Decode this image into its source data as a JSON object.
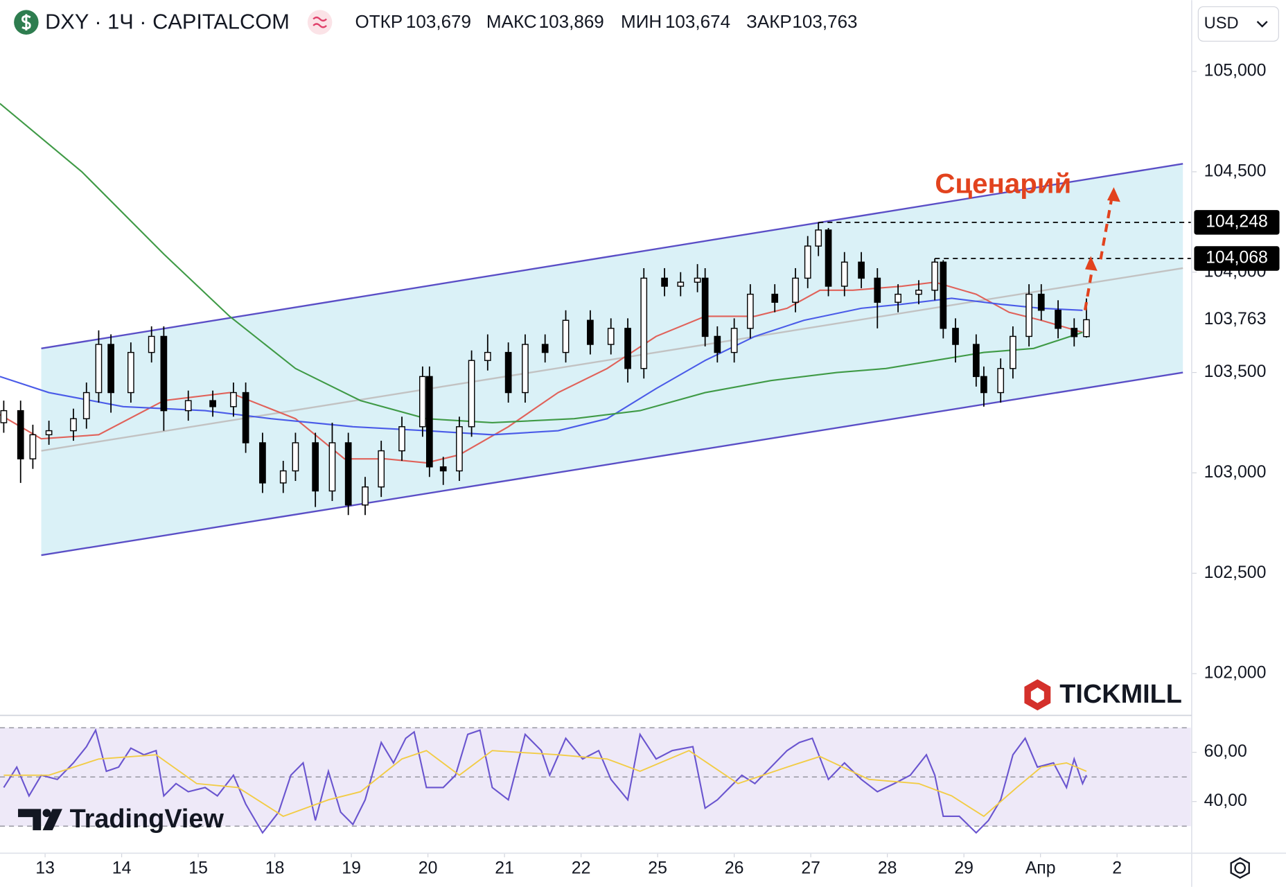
{
  "header": {
    "symbol": "DXY · 1Ч · CAPITALCOM",
    "fields": [
      {
        "label": "ОТКР",
        "value": "103,679"
      },
      {
        "label": "МАКС",
        "value": "103,869"
      },
      {
        "label": "МИН",
        "value": "103,674"
      },
      {
        "label": "ЗАКР",
        "value": "103,763"
      }
    ],
    "currency": "USD"
  },
  "brand": "TICKMILL",
  "watermark": "TradingView",
  "annotation": "Сценарий",
  "chart_data": [
    {
      "type": "candlestick",
      "xlim": [
        -0.589,
        14.964
      ],
      "ylim": [
        101.8,
        105.355
      ],
      "yticks": [
        {
          "value": 102,
          "label": "102,000"
        },
        {
          "value": 102.5,
          "label": "102,500"
        },
        {
          "value": 103,
          "label": "103,000"
        },
        {
          "value": 103.5,
          "label": "103,500"
        },
        {
          "value": 104,
          "label": "104,000"
        },
        {
          "value": 104.5,
          "label": "104,500"
        },
        {
          "value": 105,
          "label": "105,000"
        }
      ],
      "up_color": "#ffffff",
      "down_color": "#000000",
      "x": [
        -0.54,
        -0.32,
        -0.16,
        0.05,
        0.37,
        0.54,
        0.7,
        0.86,
        1.12,
        1.39,
        1.55,
        1.87,
        2.19,
        2.46,
        2.62,
        2.84,
        3.11,
        3.27,
        3.53,
        3.75,
        3.96,
        4.18,
        4.39,
        4.66,
        4.93,
        5.02,
        5.2,
        5.41,
        5.57,
        5.78,
        6.05,
        6.27,
        6.53,
        6.8,
        7.12,
        7.39,
        7.61,
        7.82,
        8.09,
        8.3,
        8.52,
        8.62,
        8.78,
        9.0,
        9.21,
        9.53,
        9.8,
        9.96,
        10.1,
        10.23,
        10.44,
        10.66,
        10.87,
        11.14,
        11.41,
        11.62,
        11.73,
        11.89,
        12.16,
        12.26,
        12.48,
        12.64,
        12.85,
        13.01,
        13.23,
        13.44,
        13.6
      ],
      "open": [
        103.25,
        103.31,
        103.07,
        103.19,
        103.21,
        103.27,
        103.4,
        103.64,
        103.4,
        103.6,
        103.68,
        103.31,
        103.36,
        103.33,
        103.4,
        103.15,
        102.95,
        103.01,
        103.15,
        102.91,
        103.15,
        102.84,
        102.93,
        103.11,
        103.23,
        103.48,
        103.03,
        103.01,
        103.23,
        103.56,
        103.6,
        103.4,
        103.64,
        103.6,
        103.76,
        103.64,
        103.72,
        103.52,
        103.97,
        103.93,
        103.95,
        103.97,
        103.68,
        103.6,
        103.72,
        103.89,
        103.85,
        103.97,
        104.13,
        104.21,
        103.93,
        104.05,
        103.97,
        103.85,
        103.89,
        103.91,
        104.05,
        103.72,
        103.64,
        103.48,
        103.4,
        103.52,
        103.68,
        103.89,
        103.81,
        103.72,
        103.679
      ],
      "high": [
        103.36,
        103.36,
        103.24,
        103.26,
        103.32,
        103.45,
        103.71,
        103.69,
        103.65,
        103.73,
        103.73,
        103.41,
        103.41,
        103.45,
        103.45,
        103.2,
        103.06,
        103.2,
        103.2,
        103.25,
        103.2,
        102.98,
        103.16,
        103.28,
        103.53,
        103.53,
        103.08,
        103.28,
        103.61,
        103.69,
        103.65,
        103.69,
        103.69,
        103.81,
        103.81,
        103.77,
        103.77,
        104.02,
        104.02,
        104.0,
        104.04,
        104.02,
        103.73,
        103.77,
        103.94,
        103.94,
        104.02,
        104.18,
        104.248,
        104.22,
        104.1,
        104.1,
        104.02,
        103.94,
        103.96,
        104.068,
        104.06,
        103.77,
        103.69,
        103.53,
        103.57,
        103.73,
        103.94,
        103.94,
        103.86,
        103.77,
        103.869
      ],
      "low": [
        103.2,
        102.95,
        103.02,
        103.14,
        103.16,
        103.22,
        103.35,
        103.3,
        103.35,
        103.55,
        103.21,
        103.26,
        103.28,
        103.28,
        103.1,
        102.9,
        102.9,
        102.96,
        102.83,
        102.86,
        102.79,
        102.79,
        102.88,
        103.06,
        103.18,
        102.98,
        102.94,
        102.96,
        103.18,
        103.51,
        103.35,
        103.35,
        103.55,
        103.55,
        103.59,
        103.59,
        103.45,
        103.47,
        103.88,
        103.88,
        103.9,
        103.63,
        103.55,
        103.55,
        103.67,
        103.8,
        103.8,
        103.92,
        104.08,
        103.88,
        103.88,
        103.92,
        103.72,
        103.8,
        103.84,
        103.86,
        103.67,
        103.55,
        103.43,
        103.33,
        103.35,
        103.47,
        103.63,
        103.76,
        103.67,
        103.63,
        103.674
      ],
      "close": [
        103.31,
        103.07,
        103.19,
        103.21,
        103.27,
        103.4,
        103.64,
        103.4,
        103.6,
        103.68,
        103.31,
        103.36,
        103.33,
        103.4,
        103.15,
        102.95,
        103.01,
        103.15,
        102.91,
        103.15,
        102.84,
        102.93,
        103.11,
        103.23,
        103.48,
        103.03,
        103.01,
        103.23,
        103.56,
        103.6,
        103.4,
        103.64,
        103.6,
        103.76,
        103.64,
        103.72,
        103.52,
        103.97,
        103.93,
        103.95,
        103.97,
        103.68,
        103.6,
        103.72,
        103.89,
        103.85,
        103.97,
        104.13,
        104.21,
        103.93,
        104.05,
        103.97,
        103.85,
        103.89,
        103.91,
        104.05,
        103.72,
        103.64,
        103.48,
        103.4,
        103.52,
        103.68,
        103.89,
        103.81,
        103.72,
        103.679,
        103.763
      ],
      "lines": [
        {
          "color": "#e0625a",
          "x": [
            -0.59,
            -0.05,
            0.7,
            1.55,
            2.41,
            3.27,
            3.91,
            4.45,
            4.98,
            5.41,
            6.05,
            6.7,
            7.34,
            7.98,
            8.62,
            9.27,
            9.69,
            10.12,
            10.55,
            11.19,
            11.62,
            12.16,
            12.59,
            13.01,
            13.55
          ],
          "values": [
            103.29,
            103.17,
            103.19,
            103.36,
            103.4,
            103.27,
            103.07,
            103.07,
            103.05,
            103.09,
            103.23,
            103.4,
            103.52,
            103.68,
            103.78,
            103.78,
            103.82,
            103.91,
            103.91,
            103.93,
            103.95,
            103.89,
            103.8,
            103.76,
            103.7
          ]
        },
        {
          "color": "#4a5be8",
          "x": [
            -0.59,
            0.05,
            1.02,
            2.09,
            2.95,
            4.02,
            4.98,
            5.84,
            6.7,
            7.34,
            7.98,
            8.62,
            9.27,
            9.91,
            10.66,
            11.19,
            11.84,
            12.48,
            13.01,
            13.55
          ],
          "values": [
            103.48,
            103.4,
            103.33,
            103.31,
            103.27,
            103.23,
            103.21,
            103.19,
            103.21,
            103.27,
            103.42,
            103.56,
            103.68,
            103.76,
            103.82,
            103.84,
            103.87,
            103.84,
            103.82,
            103.81
          ]
        },
        {
          "color": "#3f9a46",
          "x": [
            -0.59,
            0.48,
            1.55,
            2.41,
            3.27,
            4.12,
            4.98,
            5.84,
            6.91,
            7.77,
            8.62,
            9.48,
            10.34,
            10.98,
            11.62,
            12.26,
            12.91,
            13.55
          ],
          "values": [
            104.84,
            104.5,
            104.09,
            103.78,
            103.52,
            103.36,
            103.27,
            103.25,
            103.27,
            103.31,
            103.4,
            103.46,
            103.5,
            103.52,
            103.56,
            103.6,
            103.62,
            103.7
          ]
        }
      ],
      "channel": {
        "x": [
          -0.05,
          14.86
        ],
        "upper": [
          103.62,
          104.54
        ],
        "lower": [
          102.59,
          103.5
        ],
        "middle": [
          103.11,
          104.02
        ],
        "color": "#5a4ec6",
        "fill": "#daf1f7"
      },
      "levels": [
        {
          "value": 104.248,
          "label": "104,248",
          "x_start": 10.1
        },
        {
          "value": 104.068,
          "label": "104,068",
          "x_start": 11.62
        }
      ],
      "price_label": {
        "value": 103.763,
        "label": "103,763"
      }
    },
    {
      "type": "line",
      "xlim": [
        -0.589,
        14.964
      ],
      "ylim": [
        19,
        74.67
      ],
      "yticks": [
        {
          "value": 40,
          "label": "40,00"
        },
        {
          "value": 60,
          "label": "60,00"
        }
      ],
      "bands": [
        30,
        50,
        70
      ],
      "xticks": [
        {
          "value": 0,
          "label": "13"
        },
        {
          "value": 1,
          "label": "14"
        },
        {
          "value": 2,
          "label": "15"
        },
        {
          "value": 3,
          "label": "18"
        },
        {
          "value": 4,
          "label": "19"
        },
        {
          "value": 5,
          "label": "20"
        },
        {
          "value": 6,
          "label": "21"
        },
        {
          "value": 7,
          "label": "22"
        },
        {
          "value": 8,
          "label": "25"
        },
        {
          "value": 9,
          "label": "26"
        },
        {
          "value": 10,
          "label": "27"
        },
        {
          "value": 11,
          "label": "28"
        },
        {
          "value": 12,
          "label": "29"
        },
        {
          "value": 13,
          "label": "Апр"
        },
        {
          "value": 14,
          "label": "2"
        }
      ],
      "series": [
        {
          "color": "#6a55cf",
          "x": [
            -0.54,
            -0.37,
            -0.21,
            -0.05,
            0.16,
            0.37,
            0.54,
            0.66,
            0.8,
            0.96,
            1.12,
            1.29,
            1.45,
            1.55,
            1.71,
            1.87,
            2.09,
            2.25,
            2.46,
            2.62,
            2.84,
            3.05,
            3.21,
            3.37,
            3.53,
            3.7,
            3.86,
            4.02,
            4.18,
            4.39,
            4.55,
            4.71,
            4.82,
            4.98,
            5.2,
            5.36,
            5.52,
            5.68,
            5.84,
            6.05,
            6.27,
            6.48,
            6.59,
            6.8,
            7.02,
            7.23,
            7.39,
            7.61,
            7.77,
            7.98,
            8.19,
            8.46,
            8.62,
            8.78,
            8.94,
            9.1,
            9.27,
            9.48,
            9.69,
            9.85,
            10.02,
            10.23,
            10.44,
            10.66,
            10.87,
            11.09,
            11.3,
            11.51,
            11.62,
            11.73,
            11.94,
            12.16,
            12.32,
            12.48,
            12.64,
            12.8,
            12.96,
            13.17,
            13.34,
            13.44,
            13.55,
            13.6
          ],
          "values": [
            45.7,
            54,
            42.3,
            50.7,
            49,
            55.7,
            62.3,
            69,
            52.3,
            54,
            61.7,
            59,
            60.7,
            42.3,
            47.3,
            44,
            45.7,
            42.3,
            50.7,
            39,
            27.3,
            35.7,
            50.7,
            55.7,
            32.3,
            52.3,
            35.7,
            30.7,
            40.7,
            64,
            55.7,
            65.7,
            68.3,
            45.7,
            45.7,
            50.7,
            67.3,
            69,
            45.7,
            40.7,
            67.3,
            60.7,
            50.7,
            65.7,
            57.3,
            60.7,
            49,
            40.7,
            67.3,
            57.3,
            60.7,
            62.3,
            37.3,
            40.7,
            45.7,
            50.7,
            47.3,
            54,
            60.7,
            64,
            65.7,
            49,
            55.7,
            49,
            44,
            47.3,
            50.7,
            59,
            50.7,
            34,
            34,
            27.3,
            32.3,
            40.7,
            59,
            65.7,
            54,
            55.7,
            45.7,
            57.3,
            47.3,
            50.7
          ]
        },
        {
          "color": "#f2cc45",
          "x": [
            -0.54,
            0.05,
            0.7,
            1.45,
            1.98,
            2.52,
            3.11,
            3.7,
            4.12,
            4.66,
            4.98,
            5.41,
            5.84,
            6.7,
            7.34,
            7.77,
            8.41,
            9.05,
            9.69,
            10.12,
            10.76,
            11.41,
            11.84,
            12.26,
            12.69,
            13.01,
            13.34,
            13.6
          ],
          "values": [
            50.7,
            50.7,
            57.3,
            59,
            47.3,
            45.7,
            34,
            40.7,
            44,
            57.3,
            60.7,
            50.7,
            60.7,
            59,
            57.3,
            52.3,
            60.7,
            47.3,
            54,
            58.3,
            49,
            47.3,
            42.3,
            34,
            45.7,
            54,
            55.7,
            52.3
          ]
        }
      ]
    }
  ]
}
